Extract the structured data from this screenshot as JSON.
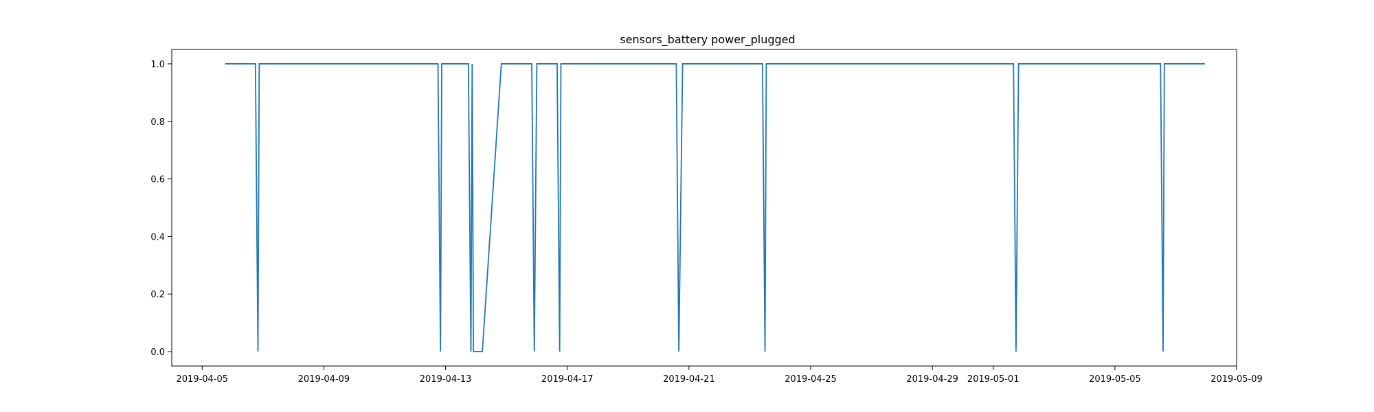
{
  "chart_data": {
    "type": "line",
    "title": "sensors_battery power_plugged",
    "xlabel": "",
    "ylabel": "",
    "x_type": "datetime",
    "xlim": [
      "2019-04-04T00:00",
      "2019-05-09T00:00"
    ],
    "ylim": [
      -0.05,
      1.05
    ],
    "x_ticks": [
      "2019-04-05",
      "2019-04-09",
      "2019-04-13",
      "2019-04-17",
      "2019-04-21",
      "2019-04-25",
      "2019-04-29",
      "2019-05-01",
      "2019-05-05",
      "2019-05-09"
    ],
    "y_ticks": [
      0.0,
      0.2,
      0.4,
      0.6,
      0.8,
      1.0
    ],
    "y_tick_labels": [
      "0.0",
      "0.2",
      "0.4",
      "0.6",
      "0.8",
      "1.0"
    ],
    "grid": false,
    "legend": "none",
    "line_color": "#1f77b4",
    "series": [
      {
        "points": [
          [
            "2019-04-05T18:00",
            1
          ],
          [
            "2019-04-06T18:00",
            1
          ],
          [
            "2019-04-06T20:00",
            0
          ],
          [
            "2019-04-06T21:00",
            1
          ],
          [
            "2019-04-12T18:00",
            1
          ],
          [
            "2019-04-12T20:00",
            0
          ],
          [
            "2019-04-12T21:00",
            1
          ],
          [
            "2019-04-13T18:00",
            1
          ],
          [
            "2019-04-13T20:00",
            0
          ],
          [
            "2019-04-13T21:00",
            1
          ],
          [
            "2019-04-13T22:00",
            0
          ],
          [
            "2019-04-14T05:00",
            0
          ],
          [
            "2019-04-14T20:00",
            1
          ],
          [
            "2019-04-15T20:00",
            1
          ],
          [
            "2019-04-15T22:00",
            0
          ],
          [
            "2019-04-16T00:00",
            1
          ],
          [
            "2019-04-16T16:00",
            1
          ],
          [
            "2019-04-16T18:00",
            0
          ],
          [
            "2019-04-16T19:00",
            1
          ],
          [
            "2019-04-20T14:00",
            1
          ],
          [
            "2019-04-20T16:00",
            0
          ],
          [
            "2019-04-20T19:00",
            1
          ],
          [
            "2019-04-23T10:00",
            1
          ],
          [
            "2019-04-23T12:00",
            0
          ],
          [
            "2019-04-23T13:00",
            1
          ],
          [
            "2019-05-01T16:00",
            1
          ],
          [
            "2019-05-01T18:00",
            0
          ],
          [
            "2019-05-01T20:00",
            1
          ],
          [
            "2019-05-06T12:00",
            1
          ],
          [
            "2019-05-06T14:00",
            0
          ],
          [
            "2019-05-06T15:00",
            1
          ],
          [
            "2019-05-07T23:00",
            1
          ]
        ]
      }
    ]
  }
}
